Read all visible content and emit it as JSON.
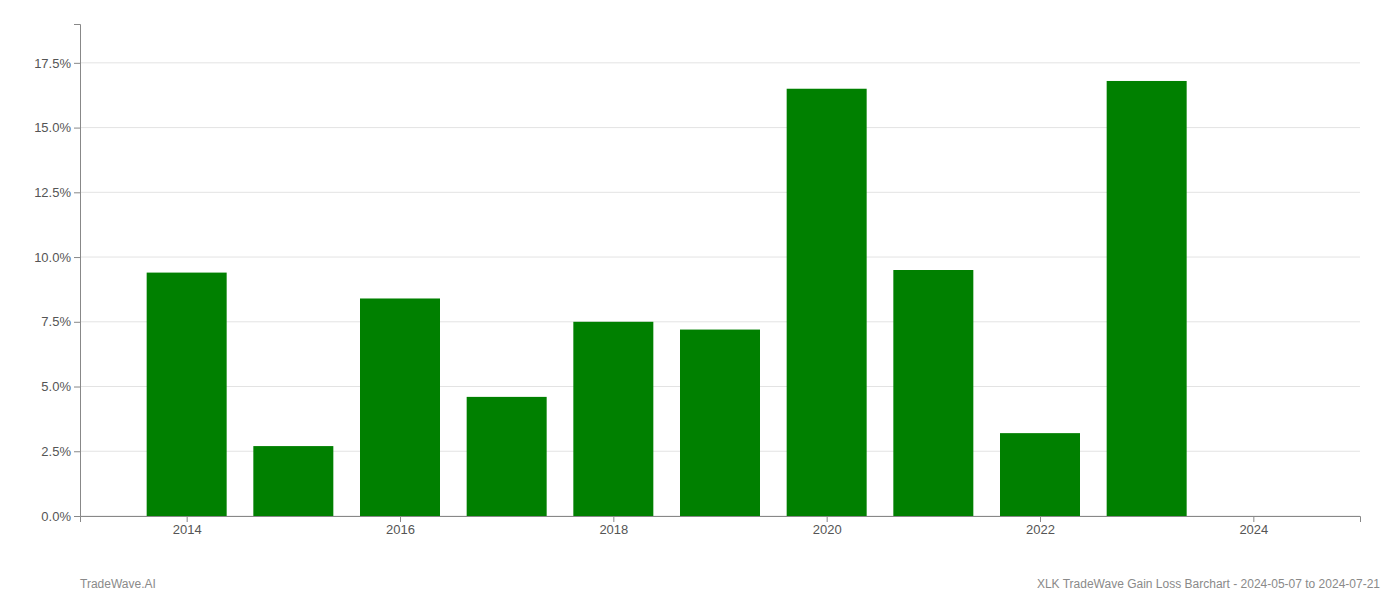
{
  "chart_data": {
    "type": "bar",
    "x": [
      2014,
      2015,
      2016,
      2017,
      2018,
      2019,
      2020,
      2021,
      2022,
      2023
    ],
    "values": [
      0.094,
      0.027,
      0.084,
      0.046,
      0.075,
      0.072,
      0.165,
      0.095,
      0.032,
      0.168
    ],
    "color": "#008000",
    "xlim": [
      2013,
      2025
    ],
    "xticks": [
      2014,
      2016,
      2018,
      2020,
      2022,
      2024
    ],
    "ylim": [
      0,
      0.19
    ],
    "yticks": [
      {
        "value": 0.0,
        "label": "0.0%"
      },
      {
        "value": 0.025,
        "label": "2.5%"
      },
      {
        "value": 0.05,
        "label": "5.0%"
      },
      {
        "value": 0.075,
        "label": "7.5%"
      },
      {
        "value": 0.1,
        "label": "10.0%"
      },
      {
        "value": 0.125,
        "label": "12.5%"
      },
      {
        "value": 0.15,
        "label": "15.0%"
      },
      {
        "value": 0.175,
        "label": "17.5%"
      }
    ],
    "grid": true,
    "annotations": [
      "TradeWave.AI",
      "XLK TradeWave Gain Loss Barchart - 2024-05-07 to 2024-07-21"
    ]
  }
}
